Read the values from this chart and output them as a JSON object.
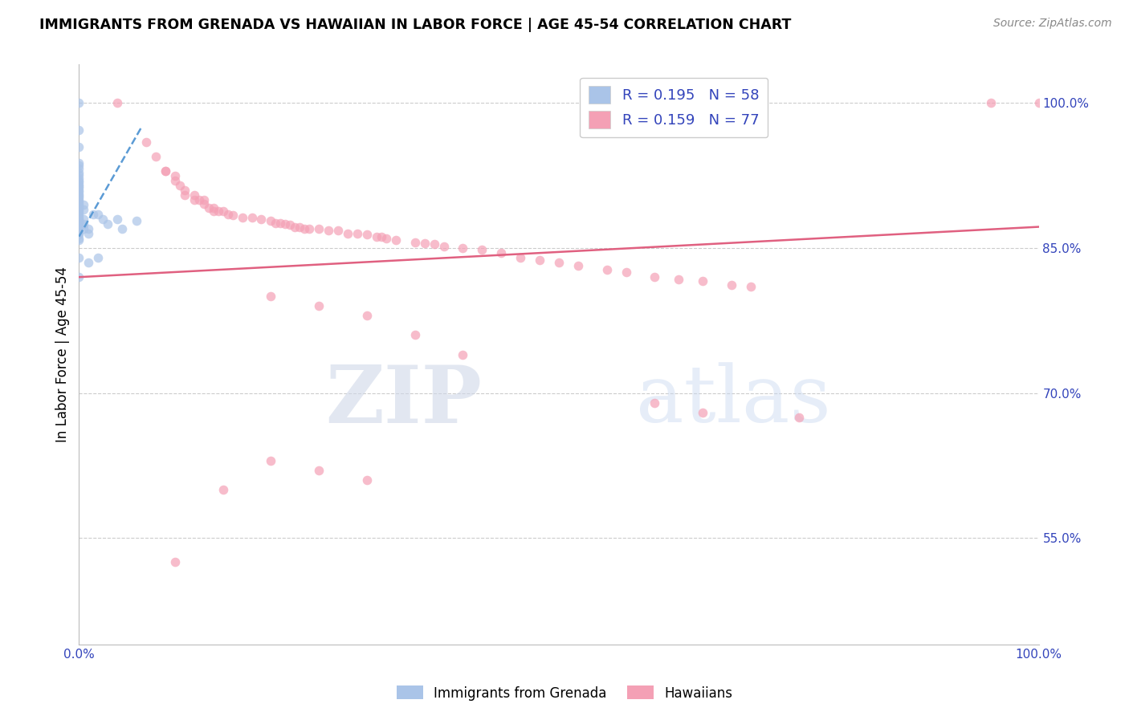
{
  "title": "IMMIGRANTS FROM GRENADA VS HAWAIIAN IN LABOR FORCE | AGE 45-54 CORRELATION CHART",
  "source": "Source: ZipAtlas.com",
  "ylabel": "In Labor Force | Age 45-54",
  "xlim": [
    0.0,
    1.0
  ],
  "ylim": [
    0.44,
    1.04
  ],
  "ytick_right_values": [
    0.55,
    0.7,
    0.85,
    1.0
  ],
  "ytick_right_labels": [
    "55.0%",
    "70.0%",
    "85.0%",
    "100.0%"
  ],
  "grid_color": "#cccccc",
  "legend_entries": [
    {
      "label": "R = 0.195   N = 58",
      "color": "#aac4e8"
    },
    {
      "label": "R = 0.159   N = 77",
      "color": "#f4a0b5"
    }
  ],
  "watermark_zip": "ZIP",
  "watermark_atlas": "atlas",
  "blue_scatter_x": [
    0.0,
    0.0,
    0.0,
    0.0,
    0.0,
    0.0,
    0.0,
    0.0,
    0.0,
    0.0,
    0.0,
    0.0,
    0.0,
    0.0,
    0.0,
    0.0,
    0.0,
    0.0,
    0.0,
    0.0,
    0.0,
    0.0,
    0.0,
    0.0,
    0.0,
    0.0,
    0.0,
    0.0,
    0.0,
    0.0,
    0.0,
    0.0,
    0.0,
    0.0,
    0.0,
    0.0,
    0.0,
    0.0,
    0.0,
    0.0,
    0.0,
    0.0,
    0.005,
    0.005,
    0.005,
    0.005,
    0.005,
    0.01,
    0.01,
    0.01,
    0.015,
    0.02,
    0.02,
    0.025,
    0.03,
    0.04,
    0.045,
    0.06
  ],
  "blue_scatter_y": [
    1.0,
    0.972,
    0.955,
    0.938,
    0.936,
    0.932,
    0.928,
    0.926,
    0.922,
    0.92,
    0.918,
    0.916,
    0.914,
    0.912,
    0.91,
    0.908,
    0.906,
    0.904,
    0.902,
    0.9,
    0.898,
    0.896,
    0.894,
    0.892,
    0.89,
    0.888,
    0.886,
    0.884,
    0.882,
    0.88,
    0.878,
    0.876,
    0.874,
    0.872,
    0.87,
    0.868,
    0.866,
    0.864,
    0.86,
    0.858,
    0.84,
    0.82,
    0.895,
    0.89,
    0.88,
    0.875,
    0.87,
    0.87,
    0.865,
    0.835,
    0.885,
    0.885,
    0.84,
    0.88,
    0.875,
    0.88,
    0.87,
    0.878
  ],
  "pink_scatter_x": [
    0.04,
    0.07,
    0.08,
    0.09,
    0.09,
    0.1,
    0.1,
    0.105,
    0.11,
    0.11,
    0.12,
    0.12,
    0.125,
    0.13,
    0.13,
    0.135,
    0.14,
    0.14,
    0.145,
    0.15,
    0.155,
    0.16,
    0.17,
    0.18,
    0.19,
    0.2,
    0.205,
    0.21,
    0.215,
    0.22,
    0.225,
    0.23,
    0.235,
    0.24,
    0.25,
    0.26,
    0.27,
    0.28,
    0.29,
    0.3,
    0.31,
    0.315,
    0.32,
    0.33,
    0.35,
    0.36,
    0.37,
    0.38,
    0.4,
    0.42,
    0.44,
    0.46,
    0.48,
    0.5,
    0.52,
    0.55,
    0.57,
    0.6,
    0.625,
    0.65,
    0.68,
    0.7,
    0.2,
    0.25,
    0.3,
    0.35,
    0.4,
    0.6,
    0.65,
    0.75,
    0.95,
    1.0,
    0.1,
    0.15,
    0.2,
    0.25,
    0.3
  ],
  "pink_scatter_y": [
    1.0,
    0.96,
    0.945,
    0.93,
    0.93,
    0.925,
    0.92,
    0.915,
    0.91,
    0.905,
    0.905,
    0.9,
    0.9,
    0.9,
    0.896,
    0.892,
    0.892,
    0.888,
    0.888,
    0.888,
    0.885,
    0.884,
    0.882,
    0.882,
    0.88,
    0.878,
    0.876,
    0.876,
    0.875,
    0.874,
    0.872,
    0.872,
    0.87,
    0.87,
    0.87,
    0.868,
    0.868,
    0.865,
    0.865,
    0.864,
    0.862,
    0.862,
    0.86,
    0.858,
    0.856,
    0.855,
    0.854,
    0.852,
    0.85,
    0.848,
    0.845,
    0.84,
    0.838,
    0.835,
    0.832,
    0.828,
    0.825,
    0.82,
    0.818,
    0.816,
    0.812,
    0.81,
    0.8,
    0.79,
    0.78,
    0.76,
    0.74,
    0.69,
    0.68,
    0.675,
    1.0,
    1.0,
    0.525,
    0.6,
    0.63,
    0.62,
    0.61
  ],
  "blue_line_x": [
    0.0,
    0.065
  ],
  "blue_line_y": [
    0.862,
    0.975
  ],
  "pink_line_x": [
    0.0,
    1.0
  ],
  "pink_line_y": [
    0.82,
    0.872
  ],
  "blue_line_color": "#5b9bd5",
  "pink_line_color": "#e06080",
  "blue_scatter_color": "#aac4e8",
  "pink_scatter_color": "#f4a0b5",
  "scatter_alpha": 0.7,
  "scatter_size": 70,
  "bottom_legend_labels": [
    "Immigrants from Grenada",
    "Hawaiians"
  ],
  "bottom_legend_colors": [
    "#aac4e8",
    "#f4a0b5"
  ]
}
